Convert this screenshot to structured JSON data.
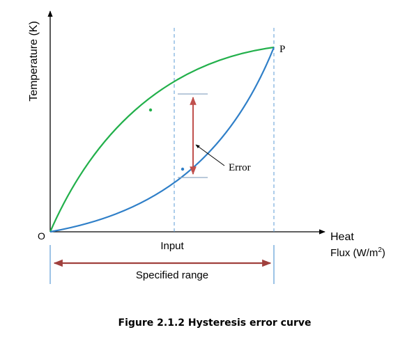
{
  "diagram": {
    "y_axis_label": "Temperature (K)",
    "x_axis_label_line1": "Heat",
    "x_axis_label_line2_main": "Flux (W/m",
    "x_axis_label_line2_sup": "2",
    "x_axis_label_line2_end": ")",
    "origin_label": "O",
    "end_point_label": "P",
    "error_label": "Error",
    "input_label": "Input",
    "range_label": "Specified range",
    "colors": {
      "upper_curve": "#22b04b",
      "lower_curve": "#2f7fc8",
      "error_arrow": "#c0504d",
      "range_arrow": "#a0403d",
      "guide_lines": "#5b9bd5",
      "axes": "#000000"
    }
  },
  "caption": "Figure 2.1.2 Hysteresis error curve"
}
